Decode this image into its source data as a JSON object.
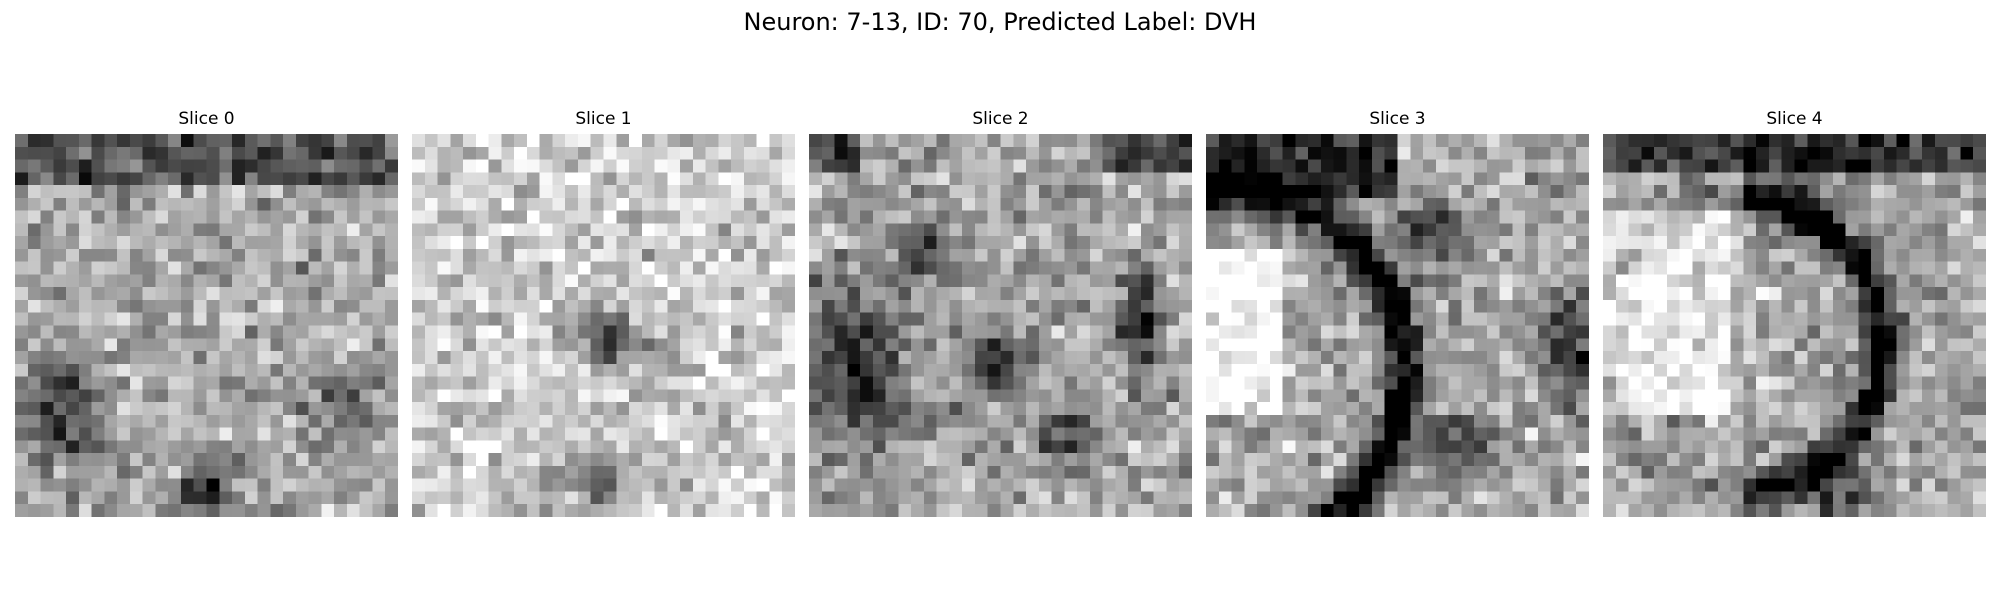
{
  "figure": {
    "title": "Neuron: 7-13, ID: 70, Predicted Label: DVH"
  },
  "slices": [
    {
      "label": "Slice 0"
    },
    {
      "label": "Slice 1"
    },
    {
      "label": "Slice 2"
    },
    {
      "label": "Slice 3"
    },
    {
      "label": "Slice 4"
    }
  ],
  "colormap": "gray"
}
